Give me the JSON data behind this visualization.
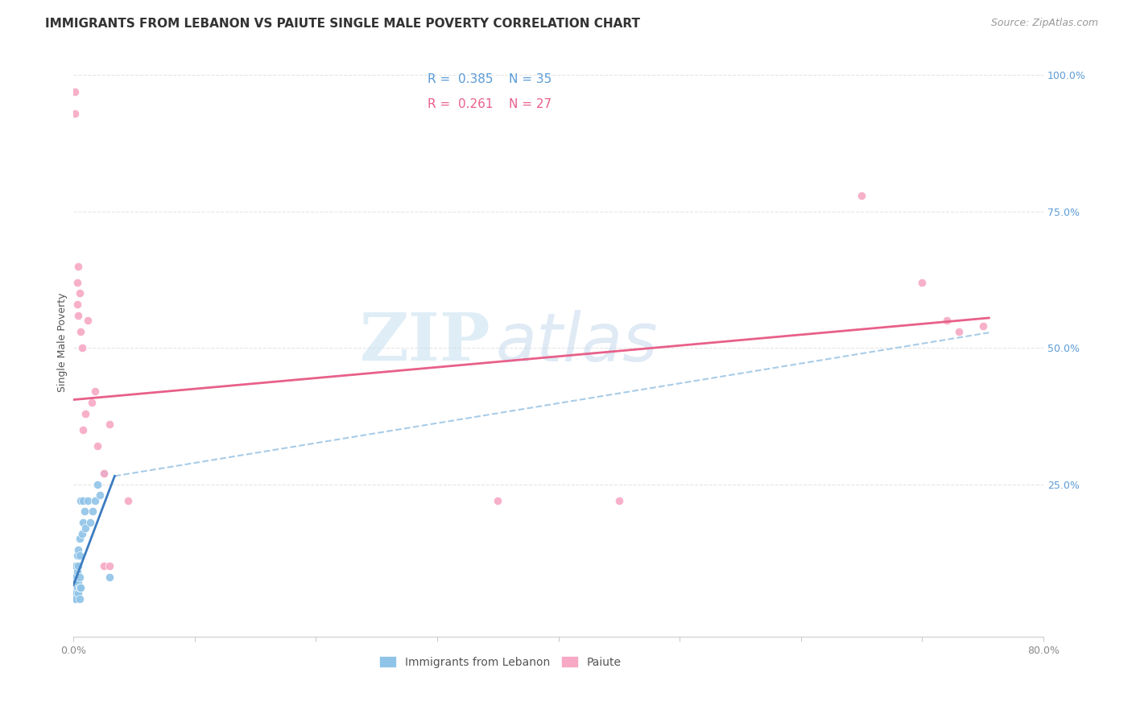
{
  "title": "IMMIGRANTS FROM LEBANON VS PAIUTE SINGLE MALE POVERTY CORRELATION CHART",
  "source": "Source: ZipAtlas.com",
  "ylabel": "Single Male Poverty",
  "legend_label1": "Immigrants from Lebanon",
  "legend_label2": "Paiute",
  "blue_color": "#8fc4e8",
  "pink_color": "#f7a8c4",
  "blue_line_color": "#3a7bbf",
  "pink_line_color": "#e8608a",
  "dashed_line_color": "#a8cce8",
  "watermark_zip": "ZIP",
  "watermark_atlas": "atlas",
  "x_min": 0.0,
  "x_max": 0.8,
  "y_min": -0.03,
  "y_max": 1.05,
  "blue_scatter_x": [
    0.0005,
    0.001,
    0.001,
    0.001,
    0.002,
    0.002,
    0.002,
    0.002,
    0.003,
    0.003,
    0.003,
    0.004,
    0.004,
    0.004,
    0.004,
    0.005,
    0.005,
    0.005,
    0.005,
    0.005,
    0.006,
    0.006,
    0.007,
    0.008,
    0.008,
    0.009,
    0.01,
    0.012,
    0.014,
    0.016,
    0.018,
    0.02,
    0.022,
    0.025,
    0.03
  ],
  "blue_scatter_y": [
    0.04,
    0.06,
    0.05,
    0.08,
    0.1,
    0.07,
    0.05,
    0.04,
    0.12,
    0.09,
    0.06,
    0.13,
    0.1,
    0.07,
    0.05,
    0.15,
    0.12,
    0.08,
    0.06,
    0.04,
    0.22,
    0.06,
    0.16,
    0.22,
    0.18,
    0.2,
    0.17,
    0.22,
    0.18,
    0.2,
    0.22,
    0.25,
    0.23,
    0.27,
    0.08
  ],
  "pink_scatter_x": [
    0.001,
    0.001,
    0.003,
    0.003,
    0.004,
    0.004,
    0.005,
    0.006,
    0.007,
    0.008,
    0.01,
    0.012,
    0.015,
    0.018,
    0.02,
    0.025,
    0.025,
    0.03,
    0.03,
    0.045,
    0.35,
    0.45,
    0.65,
    0.7,
    0.72,
    0.73,
    0.75
  ],
  "pink_scatter_y": [
    0.97,
    0.93,
    0.62,
    0.58,
    0.65,
    0.56,
    0.6,
    0.53,
    0.5,
    0.35,
    0.38,
    0.55,
    0.4,
    0.42,
    0.32,
    0.27,
    0.1,
    0.1,
    0.36,
    0.22,
    0.22,
    0.22,
    0.78,
    0.62,
    0.55,
    0.53,
    0.54
  ],
  "blue_line_x0": 0.0,
  "blue_line_x1": 0.034,
  "blue_line_y0": 0.065,
  "blue_line_y1": 0.265,
  "pink_line_x0": 0.0,
  "pink_line_x1": 0.755,
  "pink_line_y0": 0.405,
  "pink_line_y1": 0.555,
  "dash_line_x0": 0.034,
  "dash_line_x1": 0.755,
  "dash_line_y0": 0.265,
  "dash_line_y1": 0.528,
  "grid_color": "#e5e5e5",
  "bg_color": "#ffffff",
  "title_color": "#333333",
  "source_color": "#999999",
  "ylabel_color": "#555555",
  "tick_color_x": "#888888",
  "tick_color_y": "#5b9bd5",
  "legend_r1": "R = 0.385",
  "legend_n1": "N = 35",
  "legend_r2": "R = 0.261",
  "legend_n2": "N = 27",
  "legend_text_color1": "#5b9bd5",
  "legend_text_color2": "#e8608a",
  "title_fontsize": 11,
  "source_fontsize": 9,
  "tick_fontsize": 9,
  "legend_fontsize": 11,
  "ylabel_fontsize": 9
}
